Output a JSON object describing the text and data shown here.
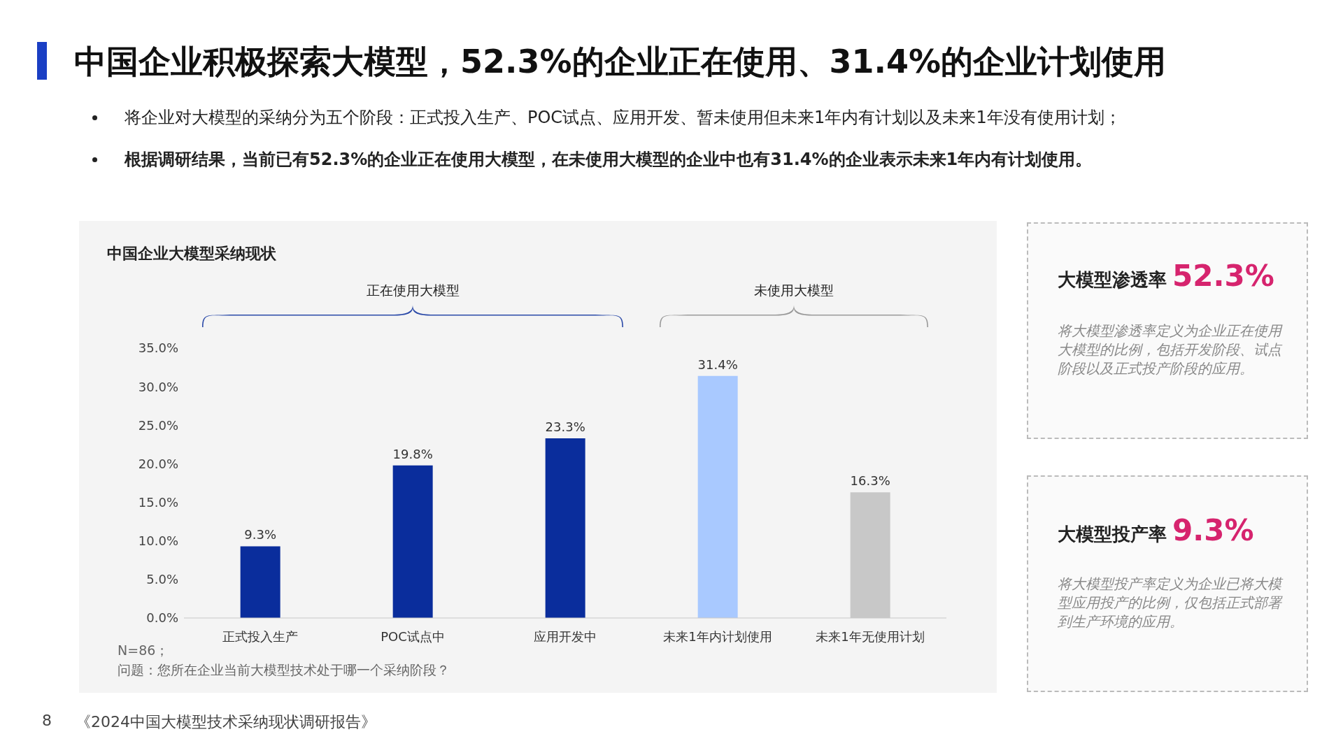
{
  "chart_data": {
    "type": "bar",
    "title": "中国企业积极探索大模型，52.3%的企业正在使用、31.4%的企业计划使用",
    "subtitle": "中国企业大模型采纳现状",
    "categories": [
      "正式投入生产",
      "POC试点中",
      "应用开发中",
      "未来1年内计划使用",
      "未来1年无使用计划"
    ],
    "values": [
      9.3,
      19.8,
      23.3,
      31.4,
      16.3
    ],
    "colors": [
      "#0a2d9c",
      "#0a2d9c",
      "#0a2d9c",
      "#a9c9ff",
      "#c8c8c8"
    ],
    "value_labels": [
      "9.3%",
      "19.8%",
      "23.3%",
      "31.4%",
      "16.3%"
    ],
    "ylim": [
      0,
      35
    ],
    "yticks": [
      {
        "value": 0,
        "label": "0.0%"
      },
      {
        "value": 5,
        "label": "5.0%"
      },
      {
        "value": 10,
        "label": "10.0%"
      },
      {
        "value": 15,
        "label": "15.0%"
      },
      {
        "value": 20,
        "label": "20.0%"
      },
      {
        "value": 25,
        "label": "25.0%"
      },
      {
        "value": 30,
        "label": "30.0%"
      },
      {
        "value": 35,
        "label": "35.0%"
      }
    ],
    "grid": false,
    "legend": false,
    "annotations": [
      "将企业对大模型的采纳分为五个阶段：正式投入生产、POC试点、应用开发、暂未使用但未来1年内有计划以及未来1年没有使用计划；",
      "根据调研结果，当前已有52.3%的企业正在使用大模型，在未使用大模型的企业中也有31.4%的企业表示未来1年内有计划使用。",
      "正在使用大模型",
      "未使用大模型",
      "N=86；",
      "问题：您所在企业当前大模型技术处于哪一个采纳阶段？",
      "大模型渗透率",
      "52.3%",
      "将大模型渗透率定义为企业正在使用大模型的比例，包括开发阶段、试点阶段以及正式投产阶段的应用。",
      "大模型投产率",
      "9.3%",
      "将大模型投产率定义为企业已将大模型应用投产的比例，仅包括正式部署到生产环境的应用。",
      "8",
      "《2024中国大模型技术采纳现状调研报告》"
    ]
  }
}
